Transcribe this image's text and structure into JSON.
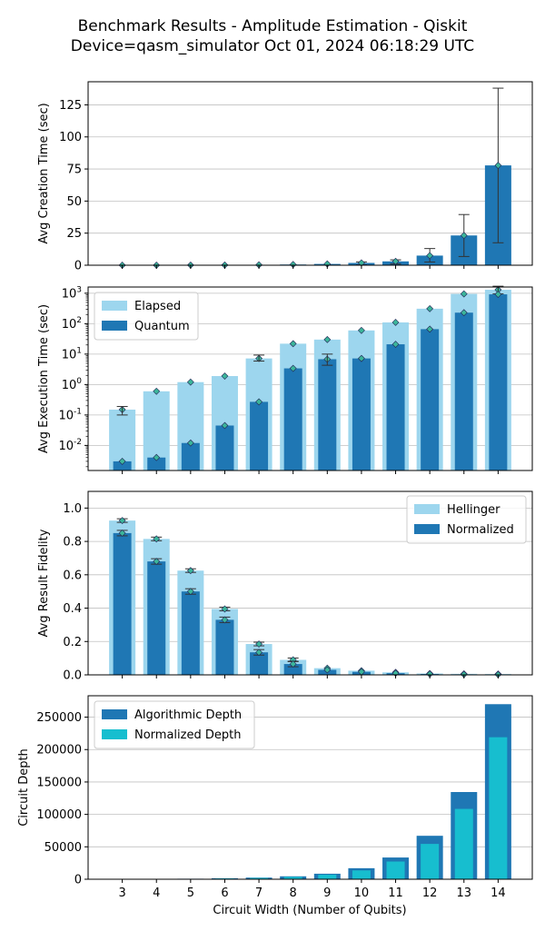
{
  "figure": {
    "title_line1": "Benchmark Results - Amplitude Estimation - Qiskit",
    "title_line2": "Device=qasm_simulator  Oct 01, 2024 06:18:29 UTC",
    "xlabel": "Circuit Width (Number of Qubits)"
  },
  "colors": {
    "dark_blue": "#1f77b4",
    "light_blue": "#9dd6ee",
    "cyan": "#17becf",
    "marker": "#3bb59a",
    "grid": "#c0c0c0"
  },
  "chart_data": [
    {
      "type": "bar",
      "ylabel": "Avg Creation Time (sec)",
      "categories": [
        3,
        4,
        5,
        6,
        7,
        8,
        9,
        10,
        11,
        12,
        13,
        14
      ],
      "ylim": [
        0,
        143
      ],
      "yticks": [
        0,
        25,
        50,
        75,
        100,
        125
      ],
      "grid": true,
      "series": [
        {
          "values": [
            0.02,
            0.04,
            0.08,
            0.15,
            0.3,
            0.55,
            1.0,
            1.8,
            3.0,
            7.5,
            23.2,
            77.8
          ],
          "err_low": [
            0,
            0,
            0,
            0,
            0,
            0,
            0,
            0.2,
            1.0,
            2.5,
            6.8,
            17.5
          ],
          "err_high": [
            0,
            0,
            0,
            0,
            0,
            0,
            0.5,
            2.6,
            4.2,
            13.0,
            39.5,
            138
          ]
        }
      ]
    },
    {
      "type": "bar",
      "scale": "log",
      "ylabel": "Avg Execution Time (sec)",
      "categories": [
        3,
        4,
        5,
        6,
        7,
        8,
        9,
        10,
        11,
        12,
        13,
        14
      ],
      "ylim": [
        0.0015,
        1600
      ],
      "ytick_labels": [
        "10^-2",
        "10^-1",
        "10^0",
        "10^1",
        "10^2",
        "10^3"
      ],
      "legend": "top-left",
      "grid": true,
      "series": [
        {
          "name": "Elapsed",
          "values": [
            0.15,
            0.6,
            1.2,
            1.9,
            7.2,
            22,
            30,
            60,
            110,
            310,
            950,
            1300
          ]
        },
        {
          "name": "Quantum",
          "values": [
            0.003,
            0.004,
            0.012,
            0.045,
            0.27,
            3.4,
            6.8,
            7.2,
            21,
            66,
            230,
            920
          ]
        }
      ]
    },
    {
      "type": "bar",
      "ylabel": "Avg Result Fidelity",
      "categories": [
        3,
        4,
        5,
        6,
        7,
        8,
        9,
        10,
        11,
        12,
        13,
        14
      ],
      "ylim": [
        0,
        1.1
      ],
      "yticks": [
        "0.0",
        "0.2",
        "0.4",
        "0.6",
        "0.8",
        "1.0"
      ],
      "legend": "top-right",
      "grid": true,
      "series": [
        {
          "name": "Hellinger",
          "values": [
            0.925,
            0.815,
            0.625,
            0.395,
            0.185,
            0.09,
            0.04,
            0.025,
            0.015,
            0.008,
            0.006,
            0.005
          ]
        },
        {
          "name": "Normalized",
          "values": [
            0.85,
            0.68,
            0.5,
            0.33,
            0.135,
            0.065,
            0.03,
            0.018,
            0.01,
            0.005,
            0.003,
            0.002
          ]
        }
      ]
    },
    {
      "type": "bar",
      "ylabel": "Circuit Depth",
      "categories": [
        3,
        4,
        5,
        6,
        7,
        8,
        9,
        10,
        11,
        12,
        13,
        14
      ],
      "ylim": [
        0,
        283000
      ],
      "yticks": [
        0,
        50000,
        100000,
        150000,
        200000,
        250000
      ],
      "legend": "top-left",
      "grid": true,
      "series": [
        {
          "name": "Algorithmic Depth",
          "values": [
            200,
            400,
            800,
            1500,
            2500,
            4500,
            8500,
            17000,
            33500,
            67000,
            134500,
            270000
          ]
        },
        {
          "name": "Normalized Depth",
          "values": [
            150,
            300,
            600,
            1200,
            2000,
            3600,
            6900,
            13600,
            27300,
            54500,
            108500,
            219000
          ]
        }
      ]
    }
  ]
}
